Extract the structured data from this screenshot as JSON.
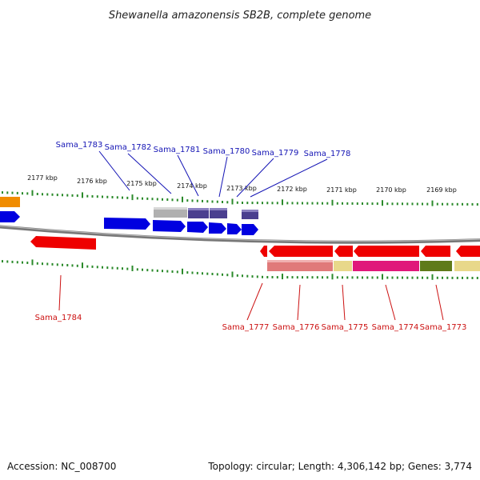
{
  "title": "Shewanella amazonensis SB2B, complete genome",
  "kbp_labels": [
    "2177 kbp",
    "2176 kbp",
    "2175 kbp",
    "2174 kbp",
    "2173 kbp",
    "2172 kbp",
    "2171 kbp",
    "2170 kbp",
    "2169 kbp"
  ],
  "genes_upper": [
    "Sama_1783",
    "Sama_1782",
    "Sama_1781",
    "Sama_1780",
    "Sama_1779",
    "Sama_1778"
  ],
  "genes_lower": [
    "Sama_1784",
    "Sama_1777",
    "Sama_1776",
    "Sama_1775",
    "Sama_1774",
    "Sama_1773"
  ],
  "footer": {
    "accession": "Accession: NC_008700",
    "summary": "Topology: circular; Length: 4,306,142 bp; Genes: 3,774"
  },
  "colors": {
    "forward_gene": "#0000e0",
    "reverse_gene": "#ee0000",
    "backbone": "#888888",
    "tick": "#2a8a2a",
    "upper_label": "#1515b5",
    "lower_label": "#cc1111"
  }
}
